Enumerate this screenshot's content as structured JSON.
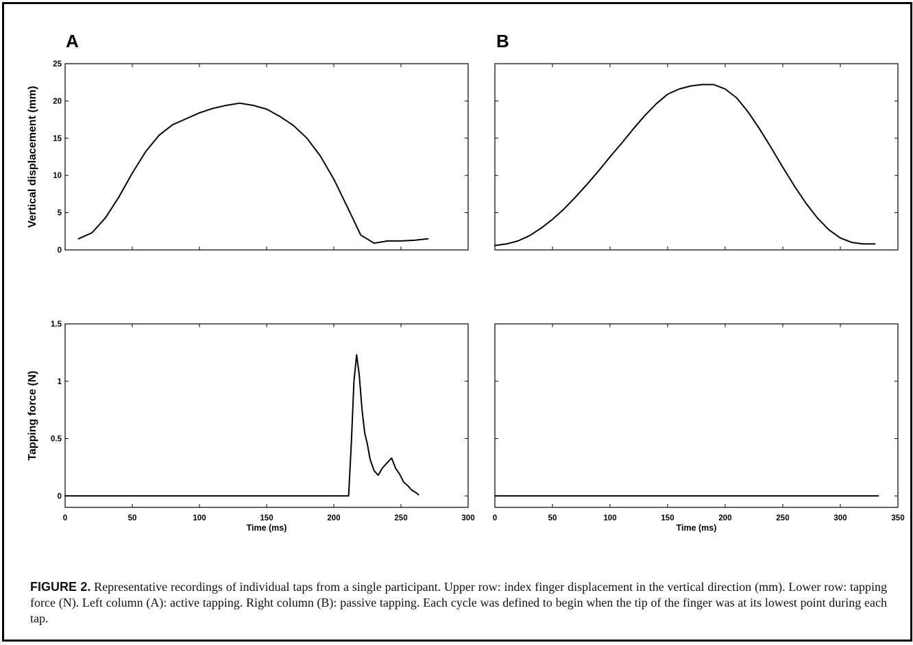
{
  "figure": {
    "panel_labels": [
      "A",
      "B"
    ],
    "caption_label": "FIGURE 2.",
    "caption_text": "Representative recordings of individual taps from a single participant. Upper row: index finger displacement in the vertical direction (mm). Lower row: tapping force (N). Left column (A): active tapping. Right column (B): passive tapping. Each cycle was defined to begin when the tip of the finger was at its lowest point during each tap."
  },
  "chart_data": [
    {
      "id": "A-top",
      "type": "line",
      "panel": "A",
      "ylabel": "Vertical displacement (mm)",
      "xlabel": "",
      "xlim": [
        0,
        300
      ],
      "ylim": [
        0,
        25
      ],
      "xticks": [
        0,
        50,
        100,
        150,
        200,
        250,
        300
      ],
      "yticks": [
        0,
        5,
        10,
        15,
        20,
        25
      ],
      "show_xtick_labels": false,
      "series": [
        {
          "x": [
            10,
            20,
            30,
            40,
            50,
            60,
            70,
            80,
            90,
            100,
            110,
            120,
            130,
            140,
            150,
            160,
            170,
            180,
            190,
            200,
            210,
            220,
            230,
            240,
            250,
            260,
            270
          ],
          "y": [
            1.5,
            2.3,
            4.3,
            7.1,
            10.3,
            13.2,
            15.4,
            16.8,
            17.6,
            18.4,
            19.0,
            19.4,
            19.7,
            19.4,
            18.9,
            17.9,
            16.7,
            15.0,
            12.6,
            9.5,
            5.8,
            2.0,
            0.9,
            1.2,
            1.2,
            1.3,
            1.5
          ]
        }
      ]
    },
    {
      "id": "B-top",
      "type": "line",
      "panel": "B",
      "ylabel": "",
      "xlabel": "",
      "xlim": [
        0,
        350
      ],
      "ylim": [
        0,
        25
      ],
      "xticks": [
        0,
        50,
        100,
        150,
        200,
        250,
        300,
        350
      ],
      "yticks": [
        0,
        5,
        10,
        15,
        20,
        25
      ],
      "show_xtick_labels": false,
      "series": [
        {
          "x": [
            0,
            10,
            20,
            30,
            40,
            50,
            60,
            70,
            80,
            90,
            100,
            110,
            120,
            130,
            140,
            150,
            160,
            170,
            180,
            190,
            200,
            210,
            220,
            230,
            240,
            250,
            260,
            270,
            280,
            290,
            300,
            310,
            320,
            330
          ],
          "y": [
            0.6,
            0.8,
            1.2,
            1.9,
            2.9,
            4.1,
            5.5,
            7.1,
            8.8,
            10.6,
            12.5,
            14.3,
            16.2,
            18.0,
            19.6,
            20.9,
            21.6,
            22.0,
            22.2,
            22.2,
            21.6,
            20.4,
            18.5,
            16.2,
            13.7,
            11.1,
            8.6,
            6.3,
            4.3,
            2.7,
            1.6,
            1.0,
            0.8,
            0.8
          ]
        }
      ]
    },
    {
      "id": "A-bottom",
      "type": "line",
      "panel": "A",
      "ylabel": "Tapping force (N)",
      "xlabel": "Time (ms)",
      "xlim": [
        0,
        300
      ],
      "ylim": [
        -0.1,
        1.5
      ],
      "xticks": [
        0,
        50,
        100,
        150,
        200,
        250,
        300
      ],
      "yticks": [
        0,
        0.5,
        1,
        1.5
      ],
      "show_xtick_labels": true,
      "series": [
        {
          "x": [
            0,
            211,
            213,
            215,
            217,
            219,
            221,
            223,
            225,
            227,
            230,
            233,
            236,
            239,
            243,
            246,
            249,
            252,
            255,
            258,
            261,
            263
          ],
          "y": [
            0,
            0,
            0.45,
            1.0,
            1.23,
            1.05,
            0.75,
            0.55,
            0.45,
            0.32,
            0.22,
            0.18,
            0.24,
            0.28,
            0.33,
            0.24,
            0.19,
            0.12,
            0.09,
            0.05,
            0.03,
            0.01
          ]
        }
      ]
    },
    {
      "id": "B-bottom",
      "type": "line",
      "panel": "B",
      "ylabel": "",
      "xlabel": "Time (ms)",
      "xlim": [
        0,
        350
      ],
      "ylim": [
        -0.1,
        1.5
      ],
      "xticks": [
        0,
        50,
        100,
        150,
        200,
        250,
        300,
        350
      ],
      "yticks": [
        0,
        0.5,
        1,
        1.5
      ],
      "show_xtick_labels": true,
      "show_ytick_labels": false,
      "series": [
        {
          "x": [
            0,
            333
          ],
          "y": [
            0,
            0
          ]
        }
      ]
    }
  ]
}
